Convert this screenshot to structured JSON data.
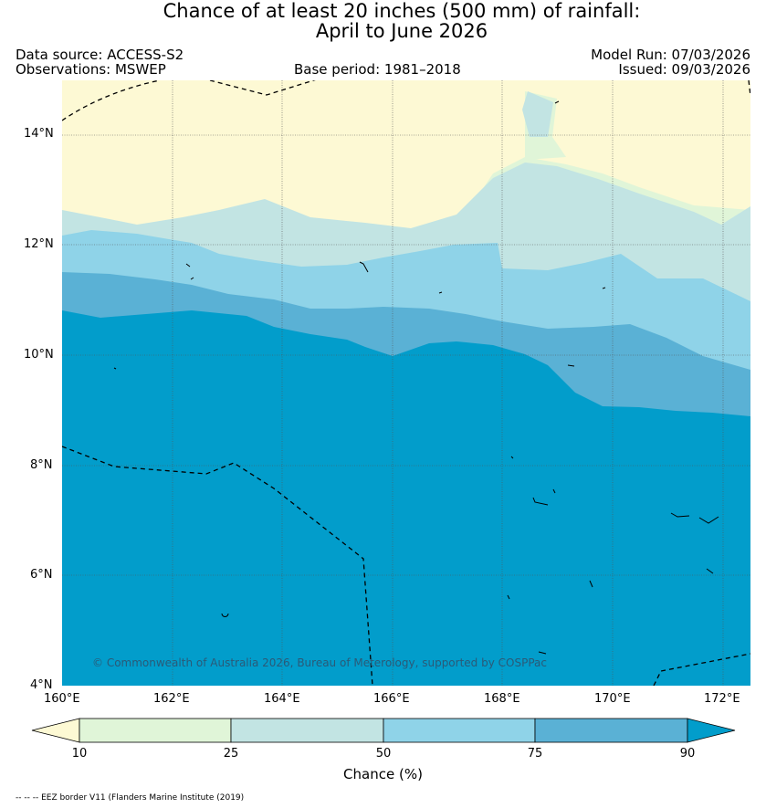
{
  "title": {
    "line1": "Chance of at least 20 inches (500  mm) of rainfall:",
    "line2": "April to June 2026"
  },
  "header": {
    "data_source": "Data source: ACCESS-S2",
    "observations": "Observations: MSWEP",
    "base_period": "Base period: 1981–2018",
    "model_run": "Model Run: 07/03/2026",
    "issued": "Issued: 09/03/2026"
  },
  "map": {
    "region": "Marshall Islands / western Pacific",
    "lon_range": [
      160,
      172.5
    ],
    "lat_range": [
      4,
      15
    ],
    "x_ticks": [
      "160°E",
      "162°E",
      "164°E",
      "166°E",
      "168°E",
      "170°E",
      "172°E"
    ],
    "y_ticks": [
      "4°N",
      "6°N",
      "8°N",
      "10°N",
      "12°N",
      "14°N"
    ],
    "copyright": "© Commonwealth of Australia 2026, Bureau of Meterology, supported by COSPPac"
  },
  "colorbar": {
    "title": "Chance (%)",
    "ticks": [
      "10",
      "25",
      "50",
      "75",
      "90"
    ],
    "colors": {
      "lt10": "#fdf9d4",
      "c10_25": "#e0f5d8",
      "c25_50": "#c2e4e3",
      "c50_75": "#8fd3e8",
      "c75_90": "#5ab1d5",
      "gt90": "#029dcb"
    }
  },
  "footnote": "-- -- -- EEZ border V11 (Flanders Marine Institute (2019)"
}
